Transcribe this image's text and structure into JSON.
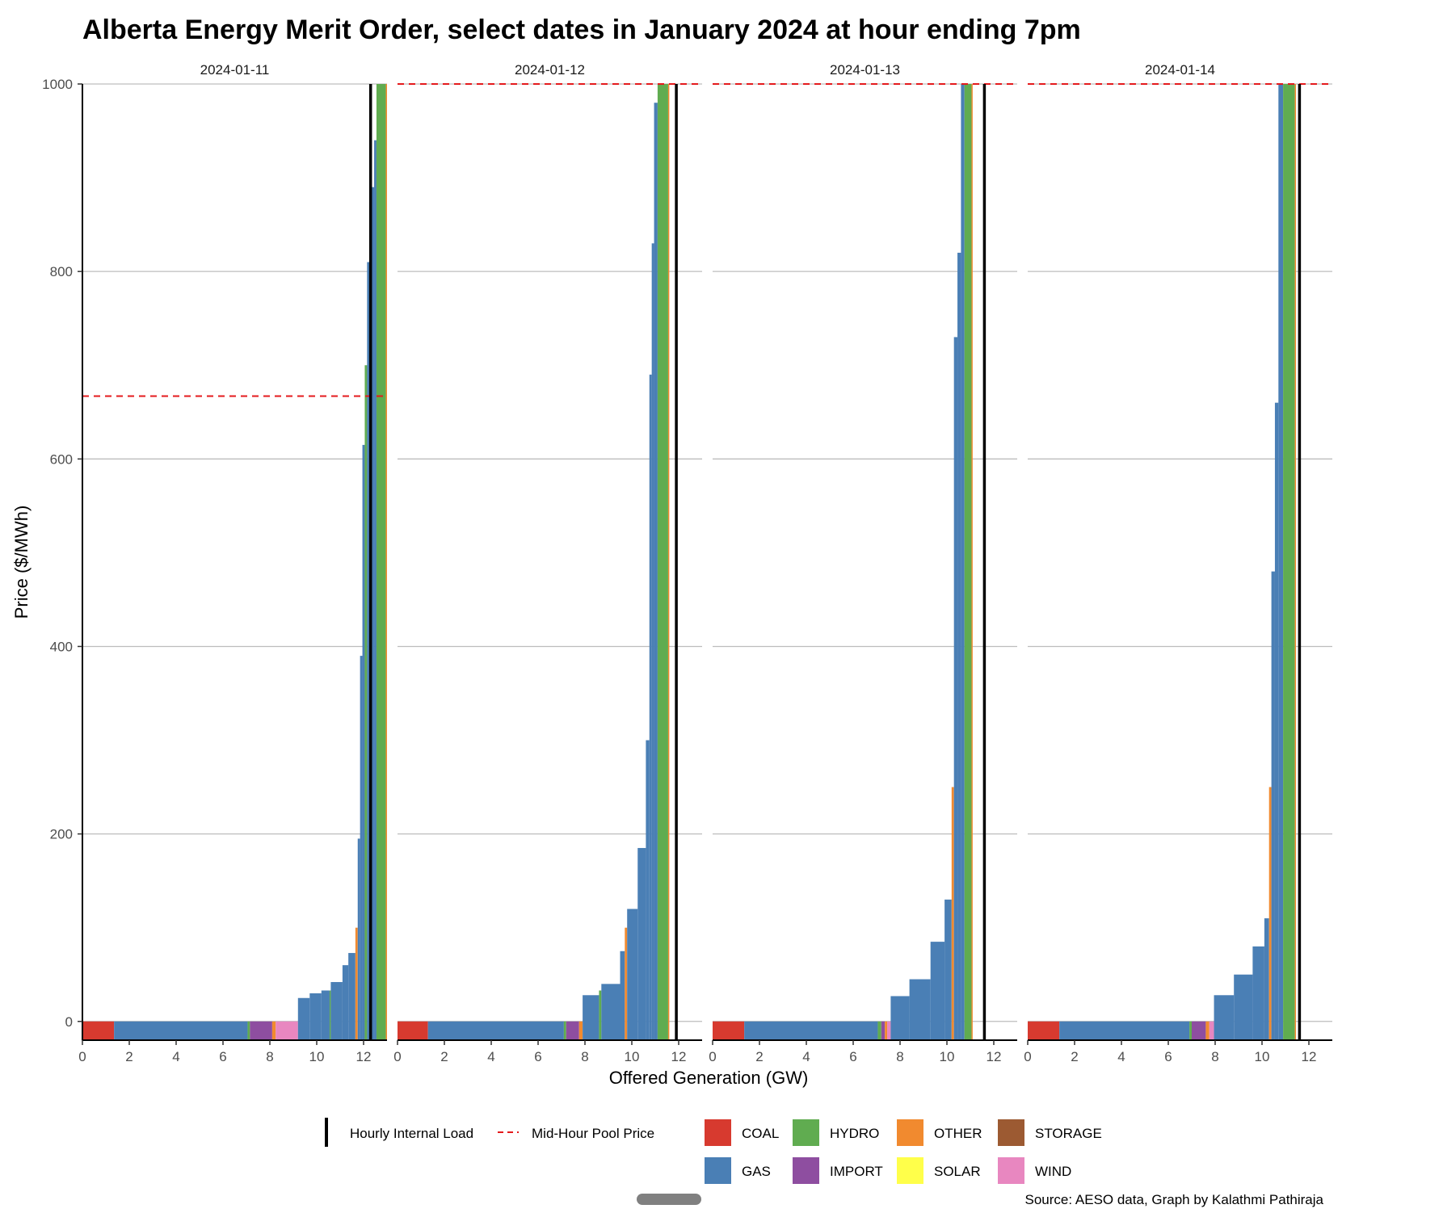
{
  "chart_data": {
    "type": "step-area",
    "title": "Alberta Energy Merit Order, select dates in January 2024 at hour ending 7pm",
    "xlabel": "Offered Generation (GW)",
    "ylabel": "Price ($/MWh)",
    "source": "Source: AESO data, Graph by Kalathmi Pathiraja",
    "xlim": [
      0,
      13
    ],
    "ylim": [
      -20,
      1000
    ],
    "x_ticks": [
      0,
      2,
      4,
      6,
      8,
      10,
      12
    ],
    "x_tick_labels": [
      "0",
      "2",
      "4",
      "6",
      "8",
      "10",
      "12"
    ],
    "y_ticks": [
      0,
      200,
      400,
      600,
      800,
      1000
    ],
    "y_tick_labels": [
      "0",
      "200",
      "400",
      "600",
      "800",
      "1000"
    ],
    "grid": "horizontal",
    "legend_position": "bottom",
    "lines_legend": [
      {
        "label": "Hourly Internal Load",
        "style": "solid",
        "color": "#000000"
      },
      {
        "label": "Mid-Hour Pool Price",
        "style": "dashed",
        "color": "#e41a1c"
      }
    ],
    "fuel_legend": [
      {
        "label": "COAL",
        "color": "#d73a2f"
      },
      {
        "label": "HYDRO",
        "color": "#60ac50"
      },
      {
        "label": "OTHER",
        "color": "#f18a2f"
      },
      {
        "label": "STORAGE",
        "color": "#9c5a32"
      },
      {
        "label": "GAS",
        "color": "#4a7fb5"
      },
      {
        "label": "IMPORT",
        "color": "#8e4ea0"
      },
      {
        "label": "SOLAR",
        "color": "#ffff4a"
      },
      {
        "label": "WIND",
        "color": "#e887c0"
      }
    ],
    "panels": [
      {
        "date": "2024-01-11",
        "load_gw": 12.3,
        "pool_price": 667,
        "blocks": [
          {
            "fuel": "COAL",
            "x0": 0,
            "x1": 1.35,
            "price": 0
          },
          {
            "fuel": "GAS",
            "x0": 1.35,
            "x1": 7.05,
            "price": 0
          },
          {
            "fuel": "HYDRO",
            "x0": 7.05,
            "x1": 7.15,
            "price": 0
          },
          {
            "fuel": "IMPORT",
            "x0": 7.15,
            "x1": 8.1,
            "price": 0
          },
          {
            "fuel": "OTHER",
            "x0": 8.1,
            "x1": 8.25,
            "price": 0
          },
          {
            "fuel": "WIND",
            "x0": 8.25,
            "x1": 9.2,
            "price": 0
          },
          {
            "fuel": "GAS",
            "x0": 9.2,
            "x1": 9.7,
            "price": 25
          },
          {
            "fuel": "GAS",
            "x0": 9.7,
            "x1": 10.2,
            "price": 30
          },
          {
            "fuel": "GAS",
            "x0": 10.2,
            "x1": 10.55,
            "price": 33
          },
          {
            "fuel": "HYDRO",
            "x0": 10.55,
            "x1": 10.6,
            "price": 33
          },
          {
            "fuel": "GAS",
            "x0": 10.6,
            "x1": 11.1,
            "price": 42
          },
          {
            "fuel": "GAS",
            "x0": 11.1,
            "x1": 11.35,
            "price": 60
          },
          {
            "fuel": "GAS",
            "x0": 11.35,
            "x1": 11.65,
            "price": 73
          },
          {
            "fuel": "OTHER",
            "x0": 11.65,
            "x1": 11.75,
            "price": 100
          },
          {
            "fuel": "GAS",
            "x0": 11.75,
            "x1": 11.85,
            "price": 195
          },
          {
            "fuel": "GAS",
            "x0": 11.85,
            "x1": 11.95,
            "price": 390
          },
          {
            "fuel": "GAS",
            "x0": 11.95,
            "x1": 12.05,
            "price": 615
          },
          {
            "fuel": "HYDRO",
            "x0": 12.05,
            "x1": 12.15,
            "price": 700
          },
          {
            "fuel": "GAS",
            "x0": 12.15,
            "x1": 12.3,
            "price": 810
          },
          {
            "fuel": "GAS",
            "x0": 12.3,
            "x1": 12.45,
            "price": 890
          },
          {
            "fuel": "GAS",
            "x0": 12.45,
            "x1": 12.55,
            "price": 940
          },
          {
            "fuel": "HYDRO",
            "x0": 12.55,
            "x1": 12.95,
            "price": 1000
          },
          {
            "fuel": "OTHER",
            "x0": 12.95,
            "x1": 13.0,
            "price": 1000
          }
        ]
      },
      {
        "date": "2024-01-12",
        "load_gw": 11.9,
        "pool_price": 999.99,
        "blocks": [
          {
            "fuel": "COAL",
            "x0": 0,
            "x1": 1.3,
            "price": 0
          },
          {
            "fuel": "GAS",
            "x0": 1.3,
            "x1": 7.1,
            "price": 0
          },
          {
            "fuel": "HYDRO",
            "x0": 7.1,
            "x1": 7.2,
            "price": 0
          },
          {
            "fuel": "IMPORT",
            "x0": 7.2,
            "x1": 7.75,
            "price": 0
          },
          {
            "fuel": "OTHER",
            "x0": 7.75,
            "x1": 7.9,
            "price": 0
          },
          {
            "fuel": "GAS",
            "x0": 7.9,
            "x1": 8.6,
            "price": 28
          },
          {
            "fuel": "HYDRO",
            "x0": 8.6,
            "x1": 8.7,
            "price": 33
          },
          {
            "fuel": "GAS",
            "x0": 8.7,
            "x1": 9.5,
            "price": 40
          },
          {
            "fuel": "GAS",
            "x0": 9.5,
            "x1": 9.7,
            "price": 75
          },
          {
            "fuel": "OTHER",
            "x0": 9.7,
            "x1": 9.8,
            "price": 100
          },
          {
            "fuel": "GAS",
            "x0": 9.8,
            "x1": 10.25,
            "price": 120
          },
          {
            "fuel": "GAS",
            "x0": 10.25,
            "x1": 10.6,
            "price": 185
          },
          {
            "fuel": "GAS",
            "x0": 10.6,
            "x1": 10.75,
            "price": 300
          },
          {
            "fuel": "GAS",
            "x0": 10.75,
            "x1": 10.85,
            "price": 690
          },
          {
            "fuel": "GAS",
            "x0": 10.85,
            "x1": 10.95,
            "price": 830
          },
          {
            "fuel": "GAS",
            "x0": 10.95,
            "x1": 11.1,
            "price": 980
          },
          {
            "fuel": "HYDRO",
            "x0": 11.1,
            "x1": 11.55,
            "price": 1000
          },
          {
            "fuel": "OTHER",
            "x0": 11.55,
            "x1": 11.6,
            "price": 1000
          }
        ]
      },
      {
        "date": "2024-01-13",
        "load_gw": 11.6,
        "pool_price": 999.99,
        "blocks": [
          {
            "fuel": "COAL",
            "x0": 0,
            "x1": 1.35,
            "price": 0
          },
          {
            "fuel": "GAS",
            "x0": 1.35,
            "x1": 7.05,
            "price": 0
          },
          {
            "fuel": "HYDRO",
            "x0": 7.05,
            "x1": 7.2,
            "price": 0
          },
          {
            "fuel": "IMPORT",
            "x0": 7.2,
            "x1": 7.35,
            "price": 0
          },
          {
            "fuel": "OTHER",
            "x0": 7.35,
            "x1": 7.45,
            "price": 0
          },
          {
            "fuel": "WIND",
            "x0": 7.45,
            "x1": 7.6,
            "price": 0
          },
          {
            "fuel": "GAS",
            "x0": 7.6,
            "x1": 8.4,
            "price": 27
          },
          {
            "fuel": "GAS",
            "x0": 8.4,
            "x1": 9.3,
            "price": 45
          },
          {
            "fuel": "GAS",
            "x0": 9.3,
            "x1": 9.9,
            "price": 85
          },
          {
            "fuel": "GAS",
            "x0": 9.9,
            "x1": 10.2,
            "price": 130
          },
          {
            "fuel": "OTHER",
            "x0": 10.2,
            "x1": 10.3,
            "price": 250
          },
          {
            "fuel": "GAS",
            "x0": 10.3,
            "x1": 10.45,
            "price": 730
          },
          {
            "fuel": "GAS",
            "x0": 10.45,
            "x1": 10.6,
            "price": 820
          },
          {
            "fuel": "GAS",
            "x0": 10.6,
            "x1": 10.75,
            "price": 1000
          },
          {
            "fuel": "HYDRO",
            "x0": 10.75,
            "x1": 11.05,
            "price": 1000
          },
          {
            "fuel": "OTHER",
            "x0": 11.05,
            "x1": 11.1,
            "price": 1000
          }
        ]
      },
      {
        "date": "2024-01-14",
        "load_gw": 11.6,
        "pool_price": 999.99,
        "blocks": [
          {
            "fuel": "COAL",
            "x0": 0,
            "x1": 1.35,
            "price": 0
          },
          {
            "fuel": "GAS",
            "x0": 1.35,
            "x1": 6.9,
            "price": 0
          },
          {
            "fuel": "HYDRO",
            "x0": 6.9,
            "x1": 7.0,
            "price": 0
          },
          {
            "fuel": "IMPORT",
            "x0": 7.0,
            "x1": 7.6,
            "price": 0
          },
          {
            "fuel": "OTHER",
            "x0": 7.6,
            "x1": 7.75,
            "price": 0
          },
          {
            "fuel": "WIND",
            "x0": 7.75,
            "x1": 7.95,
            "price": 0
          },
          {
            "fuel": "GAS",
            "x0": 7.95,
            "x1": 8.8,
            "price": 28
          },
          {
            "fuel": "GAS",
            "x0": 8.8,
            "x1": 9.6,
            "price": 50
          },
          {
            "fuel": "GAS",
            "x0": 9.6,
            "x1": 10.1,
            "price": 80
          },
          {
            "fuel": "GAS",
            "x0": 10.1,
            "x1": 10.3,
            "price": 110
          },
          {
            "fuel": "OTHER",
            "x0": 10.3,
            "x1": 10.4,
            "price": 250
          },
          {
            "fuel": "GAS",
            "x0": 10.4,
            "x1": 10.55,
            "price": 480
          },
          {
            "fuel": "GAS",
            "x0": 10.55,
            "x1": 10.7,
            "price": 660
          },
          {
            "fuel": "GAS",
            "x0": 10.7,
            "x1": 10.9,
            "price": 1000
          },
          {
            "fuel": "HYDRO",
            "x0": 10.9,
            "x1": 11.4,
            "price": 1000
          },
          {
            "fuel": "OTHER",
            "x0": 11.4,
            "x1": 11.45,
            "price": 1000
          }
        ]
      }
    ]
  }
}
